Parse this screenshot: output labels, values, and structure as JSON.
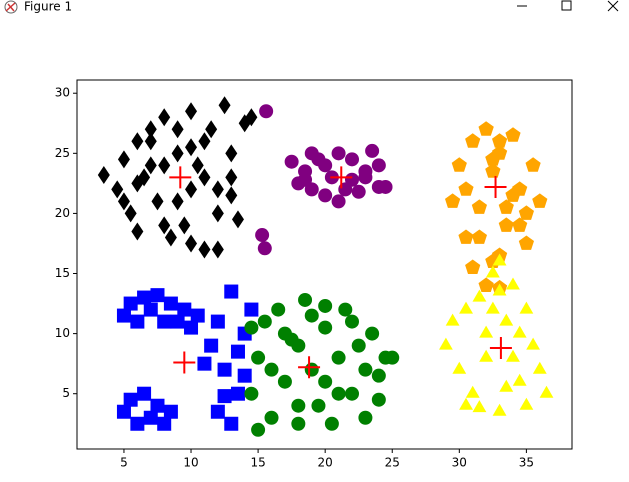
{
  "window": {
    "title": "Figure 1"
  },
  "chart_data": {
    "type": "scatter",
    "xlim": [
      1.5,
      38.4
    ],
    "ylim": [
      0.4,
      31.1
    ],
    "xticks": [
      5,
      10,
      15,
      20,
      25,
      30,
      35
    ],
    "yticks": [
      5,
      10,
      15,
      20,
      25,
      30
    ],
    "series": [
      {
        "color": "#000000",
        "marker": "D",
        "x": [
          3.5,
          4.5,
          5,
          5.5,
          6,
          6.5,
          7,
          7.5,
          8,
          8.5,
          9,
          9.5,
          10,
          10.5,
          11,
          11.5,
          12,
          12.5,
          13,
          13.5,
          14,
          5,
          6,
          7,
          8,
          9,
          10,
          11,
          12,
          13,
          7,
          9,
          11,
          13,
          8,
          10,
          12,
          14.5,
          6,
          10
        ],
        "y": [
          23.2,
          22,
          24.5,
          20,
          26,
          23,
          27,
          21,
          28,
          18,
          25,
          19,
          28.5,
          24,
          17,
          27,
          22,
          29,
          25,
          19.5,
          27.5,
          21,
          18.5,
          24,
          19,
          27,
          17.5,
          26,
          20,
          23,
          26,
          21,
          23,
          21.5,
          24,
          22,
          17,
          28,
          22.5,
          25.5
        ]
      },
      {
        "color": "#800080",
        "marker": "o",
        "x": [
          15.6,
          15.3,
          15.5,
          17.5,
          18,
          18.5,
          19,
          19.5,
          20,
          20.5,
          21,
          21.5,
          22,
          22.5,
          23,
          23.5,
          24,
          24.5,
          19,
          21,
          23,
          20,
          22,
          18.5,
          24
        ],
        "y": [
          28.5,
          18.2,
          17.1,
          24.3,
          22.5,
          23.5,
          22,
          24.5,
          21.5,
          23,
          25,
          22,
          24.5,
          21.8,
          23.5,
          25.2,
          22.2,
          22.2,
          25,
          21,
          23,
          24,
          22.8,
          22.8,
          24
        ]
      },
      {
        "color": "#ffa500",
        "marker": "p",
        "x": [
          29.5,
          30,
          30.5,
          31,
          31.5,
          32,
          32.5,
          33,
          33.5,
          34,
          34.5,
          35,
          35.5,
          36,
          30.5,
          31.5,
          32.5,
          33.5,
          34.5,
          31,
          33,
          35,
          32,
          34,
          33,
          32.5,
          33
        ],
        "y": [
          21,
          24,
          18,
          26,
          20.5,
          27,
          16,
          25,
          19,
          26.5,
          22,
          17.5,
          24,
          21,
          22,
          18,
          23.5,
          20.5,
          19,
          15.5,
          16.5,
          20,
          14,
          21.5,
          13.8,
          24.5,
          26
        ]
      },
      {
        "color": "#0000ff",
        "marker": "s",
        "x": [
          5,
          5.5,
          6,
          6.5,
          7,
          7.5,
          8,
          8.5,
          9,
          9.5,
          10,
          10.5,
          5,
          5.5,
          6,
          6.5,
          7,
          7.5,
          8,
          8.5,
          11.5,
          12,
          12.5,
          13,
          13.5,
          14,
          14.5,
          12,
          13,
          14,
          11,
          12.5,
          13.5
        ],
        "y": [
          11.5,
          12.5,
          11,
          13,
          12,
          13.2,
          11,
          12.5,
          11,
          12,
          10.5,
          11.5,
          3.5,
          4.5,
          2.5,
          5,
          3,
          4,
          2.5,
          3.5,
          9,
          11,
          7,
          13.5,
          5,
          10,
          12,
          3.5,
          2.5,
          6.5,
          7.5,
          4.8,
          8.5
        ]
      },
      {
        "color": "#008000",
        "marker": "o",
        "x": [
          14.5,
          15,
          15.5,
          16,
          16.5,
          17,
          17.5,
          18,
          18.5,
          19,
          19.5,
          20,
          20.5,
          21,
          21.5,
          22,
          22.5,
          23,
          23.5,
          24,
          24.5,
          25,
          16,
          18,
          20,
          22,
          24,
          17,
          19,
          21,
          23,
          15,
          14.5,
          18,
          20
        ],
        "y": [
          5,
          8,
          11,
          3,
          12,
          6,
          9.5,
          2.5,
          12.8,
          7,
          4,
          10.5,
          2.5,
          8,
          12,
          5,
          9,
          3,
          10,
          6.5,
          8,
          8,
          7,
          4,
          6,
          11,
          4.5,
          10,
          11.5,
          5,
          7,
          2,
          10.5,
          9,
          12.3
        ]
      },
      {
        "color": "#ffff00",
        "marker": "^",
        "x": [
          29,
          29.5,
          30,
          30.5,
          31,
          31.5,
          32,
          32.5,
          33,
          33.5,
          34,
          34.5,
          35,
          35.5,
          36,
          36.5,
          30.5,
          32,
          33,
          34,
          35,
          31.5,
          33.5,
          33,
          32.5,
          34.5
        ],
        "y": [
          9,
          11,
          7,
          12,
          5,
          13,
          8,
          15,
          16,
          11,
          14,
          6,
          12,
          9,
          7,
          5,
          4,
          10,
          3.5,
          8,
          4,
          3.8,
          5.5,
          13.5,
          12,
          10
        ]
      },
      {
        "color": "#ff0000",
        "marker": "+",
        "x": [
          9.2,
          21.2,
          32.7,
          9.5,
          18.8,
          33.1
        ],
        "y": [
          23,
          23,
          22.2,
          7.6,
          7.2,
          8.8
        ]
      }
    ]
  }
}
